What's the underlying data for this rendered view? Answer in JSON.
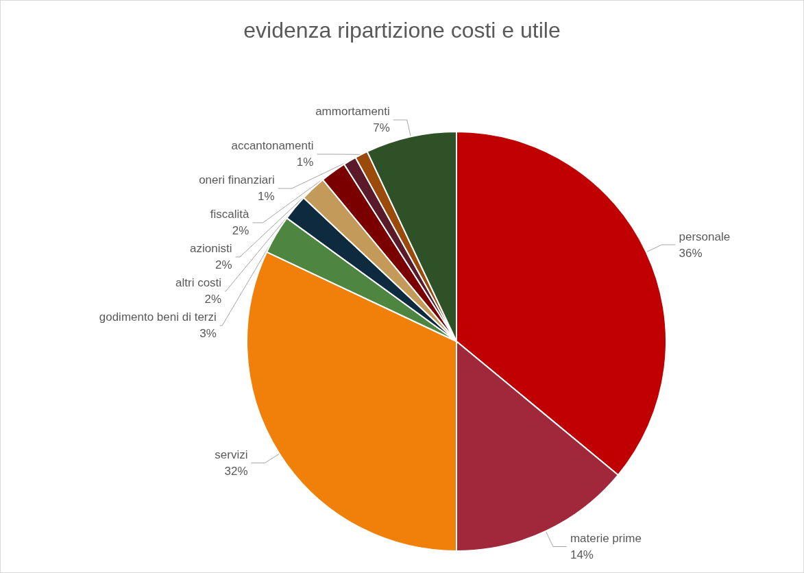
{
  "chart_data": {
    "type": "pie",
    "title": "evidenza ripartizione costi e utile",
    "categories": [
      "personale",
      "materie prime",
      "servizi",
      "godimento beni di terzi",
      "altri costi",
      "azionisti",
      "fiscalità",
      "oneri finanziari",
      "accantonamenti",
      "ammortamenti"
    ],
    "values": [
      36,
      14,
      32,
      3,
      2,
      2,
      2,
      1,
      1,
      7
    ],
    "colors": [
      "#c00000",
      "#a0283a",
      "#f0800a",
      "#4e8540",
      "#0e2a3e",
      "#c49a5a",
      "#7a0000",
      "#5a1a2a",
      "#9a4a0a",
      "#2f5128"
    ],
    "value_labels": [
      "36%",
      "14%",
      "32%",
      "3%",
      "2%",
      "2%",
      "2%",
      "1%",
      "1%",
      "7%"
    ],
    "legend": false
  }
}
